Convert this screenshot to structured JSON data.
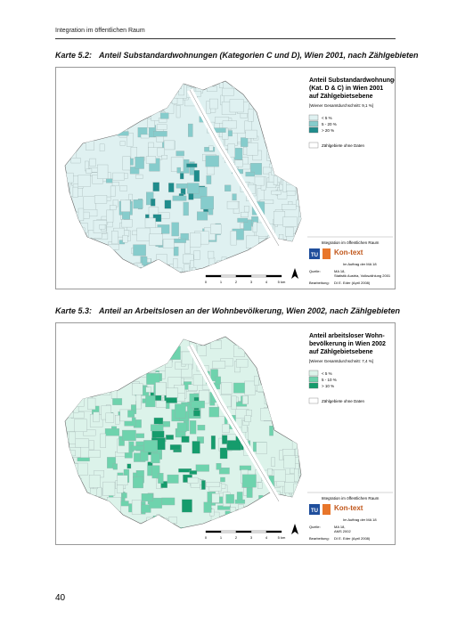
{
  "header": {
    "title": "Integration im öffentlichen Raum"
  },
  "maps": [
    {
      "caption_label": "Karte 5.2:",
      "caption_title": "Anteil Substandardwohnungen (Kategorien C und D), Wien 2001, nach Zählgebieten",
      "legend": {
        "title": [
          "Anteil Substandardwohnungen",
          "(Kat. D & C) in Wien 2001",
          "auf Zählgebietsebene"
        ],
        "average": "[Wiener Gesamtdurchschnitt: 9,1 %]",
        "items": [
          "< 5 %",
          "5 - 20 %",
          "> 20 %"
        ],
        "no_data": "Zählgebiete ohne Daten"
      },
      "credits": {
        "project": "Integration im öffentlichen Raum",
        "tu": "TU",
        "kontext": "Kon-text",
        "client": "Im Auftrag der MA 18",
        "source_label": "Quelle:",
        "source": [
          "MA 18,",
          "Statistik Austria, Volkszählung 2001"
        ],
        "editor_label": "Bearbeitung:",
        "editor": "DI E. Eder (April 2008)"
      },
      "scale": [
        "0",
        "1",
        "2",
        "3",
        "4",
        "5 km"
      ]
    },
    {
      "caption_label": "Karte 5.3:",
      "caption_title": "Anteil an Arbeitslosen an der Wohnbevölkerung, Wien 2002, nach Zählgebieten",
      "legend": {
        "title": [
          "Anteil arbeitsloser Wohn-",
          "bevölkerung in Wien 2002",
          "auf Zählgebietsebene"
        ],
        "average": "[Wiener Gesamtdurchschnitt: 7,4 %]",
        "items": [
          "< 5 %",
          "5 - 10 %",
          "> 10 %"
        ],
        "no_data": "Zählgebiete ohne Daten"
      },
      "credits": {
        "project": "Integration im öffentlichen Raum",
        "tu": "TU",
        "kontext": "Kon-text",
        "client": "Im Auftrag der MA 18",
        "source_label": "Quelle:",
        "source": [
          "MA 18,",
          "AMS 2002"
        ],
        "editor_label": "Bearbeitung:",
        "editor": "DI E. Eder (April 2008)"
      },
      "scale": [
        "0",
        "1",
        "2",
        "3",
        "4",
        "5 km"
      ]
    }
  ],
  "page_number": "40"
}
